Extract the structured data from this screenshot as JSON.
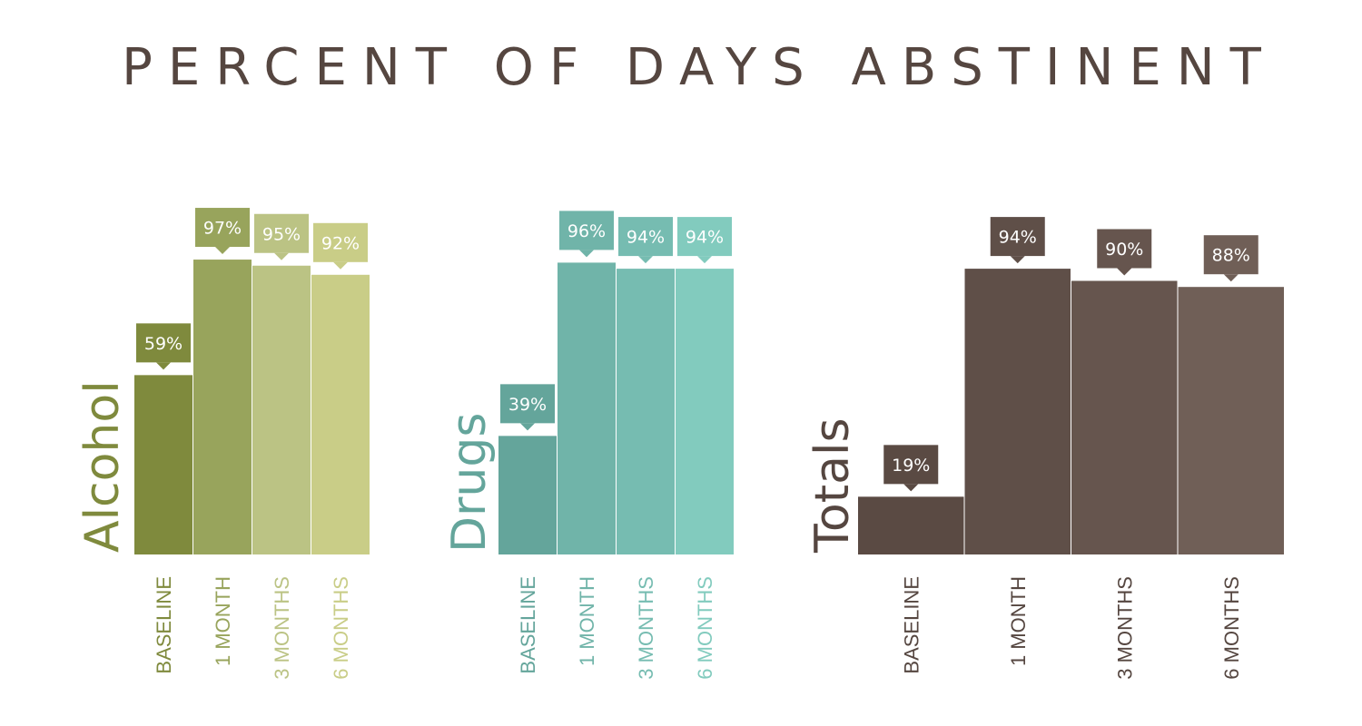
{
  "title": "PERCENT OF DAYS ABSTINENT",
  "chart_data": {
    "type": "bar",
    "title": "PERCENT OF DAYS ABSTINENT",
    "ylim": [
      0,
      100
    ],
    "grid": false,
    "panels": [
      {
        "name": "Alcohol",
        "categories": [
          "BASELINE",
          "1 MONTH",
          "3 MONTHS",
          "6 MONTHS"
        ],
        "values": [
          59,
          97,
          95,
          92
        ],
        "value_labels": [
          "59%",
          "97%",
          "95%",
          "92%"
        ],
        "colors": [
          "#7f8a3d",
          "#98a45c",
          "#bbc384",
          "#c9cd87"
        ],
        "label_color": "#7f8a3d"
      },
      {
        "name": "Drugs",
        "categories": [
          "BASELINE",
          "1 MONTH",
          "3 MONTHS",
          "6 MONTHS"
        ],
        "values": [
          39,
          96,
          94,
          94
        ],
        "value_labels": [
          "39%",
          "96%",
          "94%",
          "94%"
        ],
        "colors": [
          "#64a59b",
          "#70b4a9",
          "#76bcb1",
          "#82cbbe"
        ],
        "label_color": "#64a59b"
      },
      {
        "name": "Totals",
        "categories": [
          "BASELINE",
          "1 MONTH",
          "3 MONTHS",
          "6 MONTHS"
        ],
        "values": [
          19,
          94,
          90,
          88
        ],
        "value_labels": [
          "19%",
          "94%",
          "90%",
          "88%"
        ],
        "colors": [
          "#5a4a43",
          "#5f4f48",
          "#66554e",
          "#705f57"
        ],
        "label_color": "#554640"
      }
    ]
  }
}
